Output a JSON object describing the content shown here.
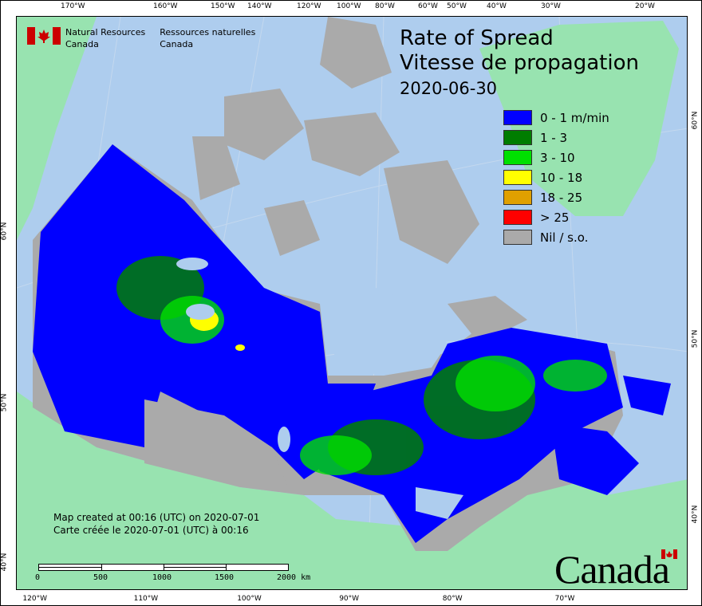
{
  "title": {
    "en": "Rate of Spread",
    "fr": "Vitesse de propagation",
    "date": "2020-06-30"
  },
  "agency": {
    "en_line1": "Natural Resources",
    "en_line2": "Canada",
    "fr_line1": "Ressources naturelles",
    "fr_line2": "Canada"
  },
  "legend": [
    {
      "label": "0 - 1 m/min",
      "color": "#0000ff"
    },
    {
      "label": "1 - 3",
      "color": "#007d00"
    },
    {
      "label": "3 - 10",
      "color": "#00e000"
    },
    {
      "label": "10 - 18",
      "color": "#ffff00"
    },
    {
      "label": "18 - 25",
      "color": "#e0a000"
    },
    {
      "label": "> 25",
      "color": "#ff0000"
    },
    {
      "label": "Nil / s.o.",
      "color": "#aaaaaa"
    }
  ],
  "top_ticks": [
    "170°W",
    "160°W",
    "150°W",
    "140°W",
    "120°W",
    "100°W",
    "80°W",
    "60°W",
    "50°W",
    "40°W",
    "30°W",
    "20°W"
  ],
  "bottom_ticks": [
    "120°W",
    "110°W",
    "100°W",
    "90°W",
    "80°W",
    "70°W"
  ],
  "left_ticks": [
    "60°N",
    "50°N",
    "40°N"
  ],
  "right_ticks": [
    "60°N",
    "50°N",
    "40°N"
  ],
  "created": {
    "en": "Map created at 00:16 (UTC) on 2020-07-01",
    "fr": "Carte créée le 2020-07-01 (UTC) à 00:16"
  },
  "scale": {
    "labels": [
      "0",
      "500",
      "1000",
      "1500",
      "2000"
    ],
    "unit": "km"
  },
  "wordmark": "Canada",
  "colors": {
    "ocean": "#aecdee",
    "land": "#98e3b0",
    "no_data": "#aaaaaa"
  }
}
